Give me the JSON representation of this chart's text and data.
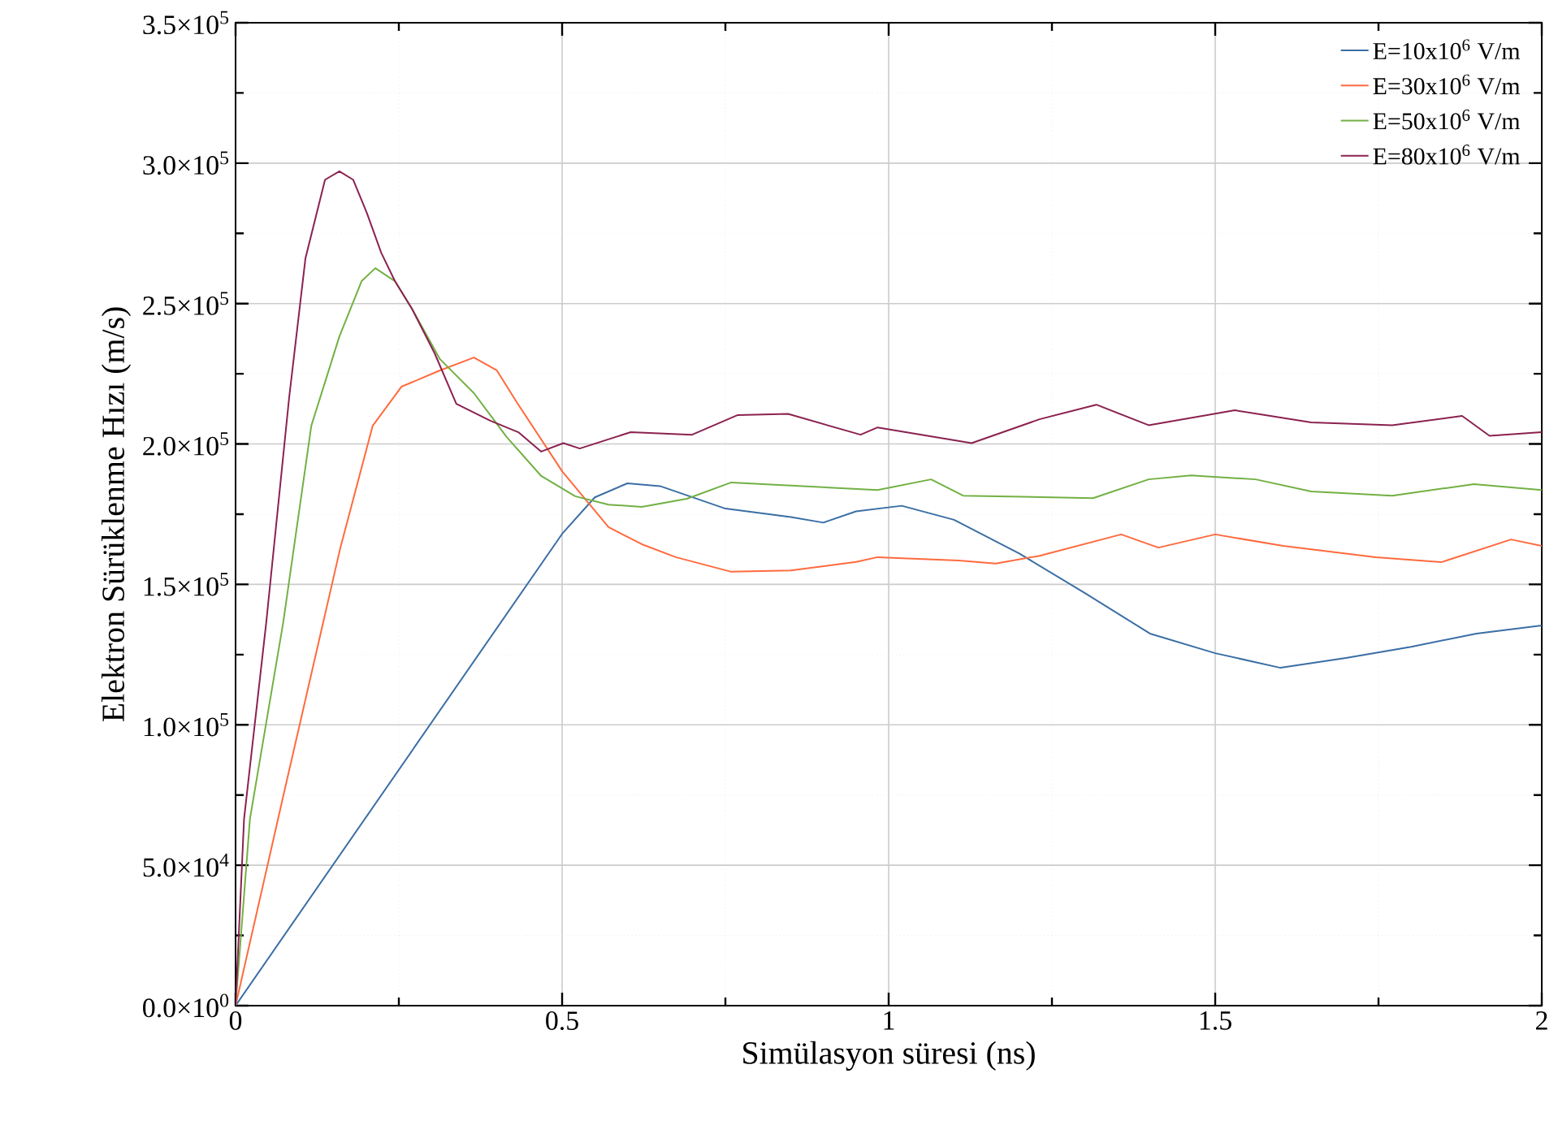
{
  "chart_data": {
    "type": "line",
    "xlabel": "Simülasyon süresi (ns)",
    "ylabel": "Elektron Sürüklenme Hızı (m/s)",
    "xlim": [
      0,
      2
    ],
    "ylim": [
      0,
      350000
    ],
    "xticks": [
      0,
      0.5,
      1,
      1.5,
      2
    ],
    "yticks": [
      {
        "value": 0,
        "label": "0.0×10$^{0}$"
      },
      {
        "value": 50000,
        "label": "5.0×10$^{4}$"
      },
      {
        "value": 100000,
        "label": "1.0×10$^{5}$"
      },
      {
        "value": 150000,
        "label": "1.5×10$^{5}$"
      },
      {
        "value": 200000,
        "label": "2.0×10$^{5}$"
      },
      {
        "value": 250000,
        "label": "2.5×10$^{5}$"
      },
      {
        "value": 300000,
        "label": "3.0×10$^{5}$"
      },
      {
        "value": 350000,
        "label": "3.5×10$^{5}$"
      }
    ],
    "grid": true,
    "legend": "top right",
    "line_style": "solid",
    "marker": "none",
    "series": [
      {
        "name": "E=10x10$^{6}$ V/m",
        "color": "#3a6ea5",
        "x": [
          0,
          0.5,
          0.55,
          0.6,
          0.65,
          0.75,
          0.85,
          0.9,
          0.95,
          1.02,
          1.1,
          1.2,
          1.3,
          1.4,
          1.5,
          1.6,
          1.7,
          1.8,
          1.9,
          2.0
        ],
        "values": [
          0,
          168000,
          181000,
          186000,
          185000,
          177000,
          174000,
          172000,
          176000,
          178000,
          173000,
          161000,
          147000,
          132500,
          125500,
          120300,
          123800,
          127800,
          132500,
          135400
        ]
      },
      {
        "name": "E=30x10$^{6}$ V/m",
        "color": "#ff6a3d",
        "x": [
          0,
          0.073,
          0.16,
          0.21,
          0.254,
          0.313,
          0.365,
          0.4,
          0.433,
          0.5,
          0.571,
          0.622,
          0.674,
          0.759,
          0.85,
          0.95,
          0.983,
          1.107,
          1.164,
          1.231,
          1.356,
          1.413,
          1.5,
          1.604,
          1.746,
          1.846,
          1.953,
          2.0
        ],
        "values": [
          0,
          74600,
          162600,
          206500,
          220400,
          226200,
          230800,
          226200,
          214000,
          190300,
          170400,
          164300,
          159700,
          154500,
          155000,
          158000,
          159700,
          158500,
          157400,
          160200,
          167800,
          163100,
          167800,
          163700,
          159700,
          157900,
          166000,
          163700
        ]
      },
      {
        "name": "E=50x10$^{6}$ V/m",
        "color": "#72b043",
        "x": [
          0,
          0.022,
          0.073,
          0.116,
          0.159,
          0.193,
          0.214,
          0.244,
          0.27,
          0.313,
          0.365,
          0.415,
          0.468,
          0.52,
          0.571,
          0.622,
          0.691,
          0.759,
          0.983,
          1.065,
          1.114,
          1.313,
          1.398,
          1.463,
          1.562,
          1.647,
          1.771,
          1.896,
          2.0
        ],
        "values": [
          0,
          66500,
          136500,
          206500,
          238300,
          258000,
          262600,
          258000,
          248200,
          230200,
          218100,
          202500,
          188600,
          181400,
          178400,
          177600,
          180500,
          186300,
          183600,
          187400,
          181600,
          180700,
          187400,
          188800,
          187400,
          183100,
          181600,
          185700,
          183600
        ]
      },
      {
        "name": "E=80x10$^{6}$ V/m",
        "color": "#8b2150",
        "x": [
          0,
          0.013,
          0.047,
          0.082,
          0.107,
          0.137,
          0.159,
          0.18,
          0.201,
          0.223,
          0.244,
          0.27,
          0.305,
          0.338,
          0.39,
          0.433,
          0.468,
          0.502,
          0.527,
          0.605,
          0.699,
          0.769,
          0.846,
          0.957,
          0.983,
          1.127,
          1.231,
          1.318,
          1.398,
          1.53,
          1.647,
          1.771,
          1.878,
          1.92,
          2.0
        ],
        "values": [
          0,
          66500,
          136500,
          216400,
          266100,
          294100,
          297100,
          294100,
          282300,
          268100,
          258000,
          248200,
          232200,
          214300,
          208300,
          204200,
          197300,
          200300,
          198400,
          204200,
          203300,
          210300,
          210700,
          203300,
          205900,
          200300,
          208800,
          214000,
          206700,
          212000,
          207700,
          206700,
          210000,
          202900,
          204200
        ]
      }
    ]
  }
}
